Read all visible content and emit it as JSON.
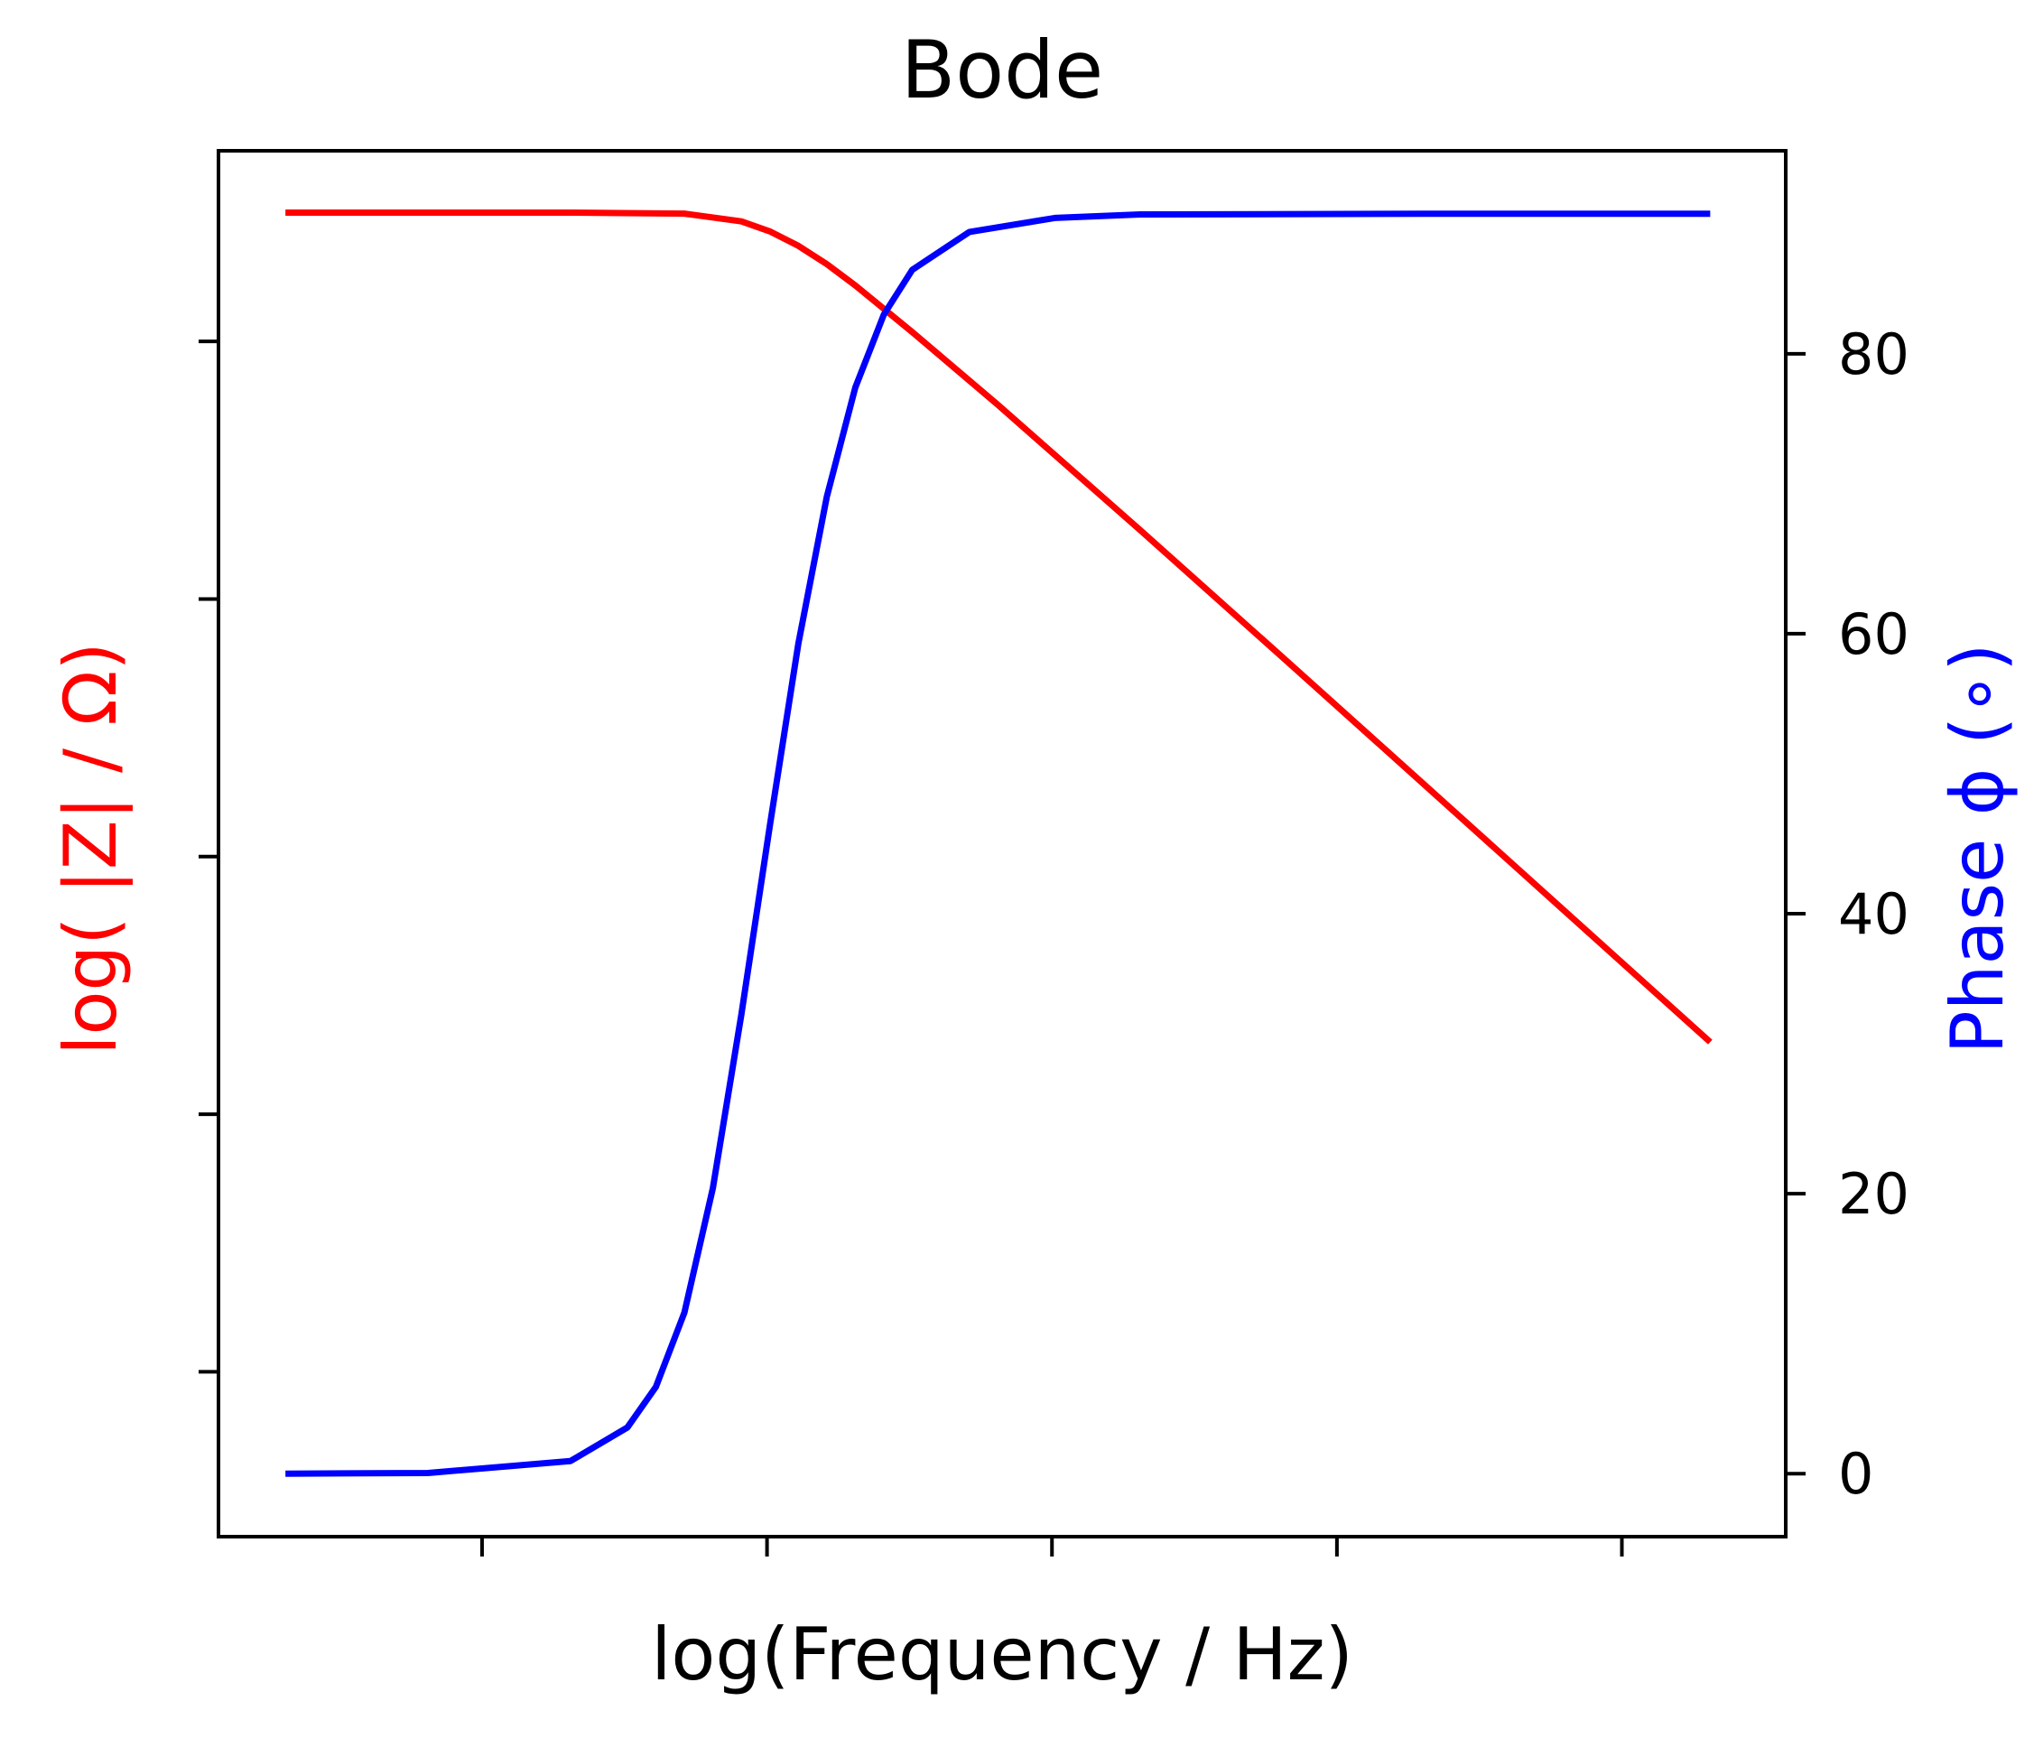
{
  "chart_data": {
    "type": "line",
    "title": "Bode",
    "xlabel": "log(Frequency / Hz)",
    "ylabel_left": "log( |Z| / Ω)",
    "ylabel_right": "Phase ϕ (∘)",
    "x_ticks_labeled": false,
    "y_left_ticks_labeled": false,
    "xlim": [
      -0.235,
      5.265
    ],
    "ylim_left": [
      -0.24,
      5.14
    ],
    "ylim_right": [
      -4.5,
      94.5
    ],
    "y_right_ticks": [
      0,
      20,
      40,
      60,
      80
    ],
    "x_tick_positions": [
      0.69,
      1.69,
      2.69,
      3.69,
      4.69
    ],
    "y_left_tick_positions": [
      0.4,
      1.4,
      2.4,
      3.4,
      4.4
    ],
    "grid": false,
    "colors": {
      "magnitude": "#ff0000",
      "phase": "#0000ff"
    },
    "series": [
      {
        "axis": "left",
        "color": "#ff0000",
        "x": [
          0,
          0.5,
          1.0,
          1.4,
          1.6,
          1.7,
          1.8,
          1.9,
          2.0,
          2.2,
          2.5,
          3.0,
          3.5,
          4.0,
          4.5,
          5.0
        ],
        "values": [
          4.9,
          4.9,
          4.9,
          4.896,
          4.866,
          4.827,
          4.771,
          4.7,
          4.617,
          4.436,
          4.154,
          3.667,
          3.173,
          2.676,
          2.178,
          1.68
        ]
      },
      {
        "axis": "right",
        "color": "#0000ff",
        "x": [
          0,
          0.5,
          1.0,
          1.2,
          1.3,
          1.4,
          1.5,
          1.6,
          1.7,
          1.8,
          1.9,
          2.0,
          2.1,
          2.2,
          2.4,
          2.7,
          3.0,
          4.0,
          5.0
        ],
        "values": [
          0,
          0.05,
          0.9,
          3.3,
          6.2,
          11.5,
          20.4,
          32.8,
          46.3,
          59.3,
          69.8,
          77.6,
          82.8,
          86.0,
          88.7,
          89.7,
          89.95,
          90,
          90
        ]
      }
    ]
  }
}
